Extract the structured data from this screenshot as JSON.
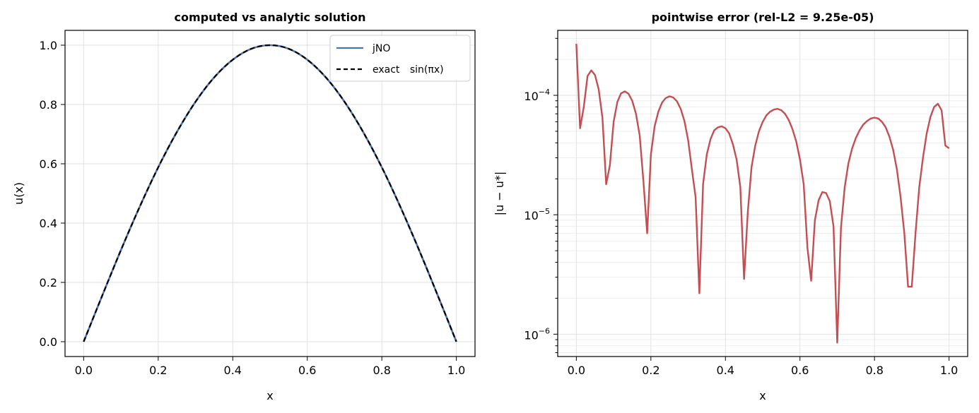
{
  "chart_data": [
    {
      "type": "line",
      "title": "computed vs analytic solution",
      "xlabel": "x",
      "ylabel": "u(x)",
      "xlim": [
        -0.05,
        1.05
      ],
      "ylim": [
        -0.05,
        1.05
      ],
      "xticks": [
        0.0,
        0.2,
        0.4,
        0.6,
        0.8,
        1.0
      ],
      "xtick_labels": [
        "0.0",
        "0.2",
        "0.4",
        "0.6",
        "0.8",
        "1.0"
      ],
      "yticks": [
        0.0,
        0.2,
        0.4,
        0.6,
        0.8,
        1.0
      ],
      "ytick_labels": [
        "0.0",
        "0.2",
        "0.4",
        "0.6",
        "0.8",
        "1.0"
      ],
      "grid": true,
      "legend_position": "top-right",
      "x": [
        0.0,
        0.05,
        0.1,
        0.15,
        0.2,
        0.25,
        0.3,
        0.35,
        0.4,
        0.45,
        0.5,
        0.55,
        0.6,
        0.65,
        0.7,
        0.75,
        0.8,
        0.85,
        0.9,
        0.95,
        1.0
      ],
      "series": [
        {
          "name": "jNO",
          "color": "#4c72b0",
          "style": "solid",
          "values": [
            0.0,
            0.156,
            0.309,
            0.454,
            0.588,
            0.707,
            0.809,
            0.891,
            0.951,
            0.988,
            1.0,
            0.988,
            0.951,
            0.891,
            0.809,
            0.707,
            0.588,
            0.454,
            0.309,
            0.156,
            0.0
          ]
        },
        {
          "name": "exact",
          "name_math": "sin(πx)",
          "color": "#000000",
          "style": "dashed",
          "values": [
            0.0,
            0.156,
            0.309,
            0.454,
            0.588,
            0.707,
            0.809,
            0.891,
            0.951,
            0.988,
            1.0,
            0.988,
            0.951,
            0.891,
            0.809,
            0.707,
            0.588,
            0.454,
            0.309,
            0.156,
            0.0
          ]
        }
      ]
    },
    {
      "type": "line",
      "title": "pointwise error (rel-L2 = 9.25e-05)",
      "xlabel": "x",
      "ylabel": "|u − u*|",
      "xlim": [
        -0.05,
        1.05
      ],
      "ylim": [
        6.5e-07,
        0.00035
      ],
      "yscale": "log",
      "xticks": [
        0.0,
        0.2,
        0.4,
        0.6,
        0.8,
        1.0
      ],
      "xtick_labels": [
        "0.0",
        "0.2",
        "0.4",
        "0.6",
        "0.8",
        "1.0"
      ],
      "yticks": [
        1e-06,
        1e-05,
        0.0001
      ],
      "ytick_labels": [
        {
          "base": "10",
          "exp": "−6"
        },
        {
          "base": "10",
          "exp": "−5"
        },
        {
          "base": "10",
          "exp": "−4"
        }
      ],
      "grid": true,
      "series": [
        {
          "color": "#c44e52",
          "x": [
            0.0,
            0.01,
            0.02,
            0.03,
            0.04,
            0.05,
            0.06,
            0.07,
            0.08,
            0.09,
            0.1,
            0.11,
            0.12,
            0.13,
            0.14,
            0.15,
            0.16,
            0.17,
            0.18,
            0.19,
            0.2,
            0.21,
            0.22,
            0.23,
            0.24,
            0.25,
            0.26,
            0.27,
            0.28,
            0.29,
            0.3,
            0.31,
            0.32,
            0.33,
            0.34,
            0.35,
            0.36,
            0.37,
            0.38,
            0.39,
            0.4,
            0.41,
            0.42,
            0.43,
            0.44,
            0.45,
            0.46,
            0.47,
            0.48,
            0.49,
            0.5,
            0.51,
            0.52,
            0.53,
            0.54,
            0.55,
            0.56,
            0.57,
            0.58,
            0.59,
            0.6,
            0.61,
            0.62,
            0.63,
            0.64,
            0.65,
            0.66,
            0.67,
            0.68,
            0.69,
            0.7,
            0.71,
            0.72,
            0.73,
            0.74,
            0.75,
            0.76,
            0.77,
            0.78,
            0.79,
            0.8,
            0.81,
            0.82,
            0.83,
            0.84,
            0.85,
            0.86,
            0.87,
            0.88,
            0.89,
            0.9,
            0.91,
            0.92,
            0.93,
            0.94,
            0.95,
            0.96,
            0.97,
            0.98,
            0.99,
            1.0
          ],
          "values": [
            0.00027,
            5.3e-05,
            8e-05,
            0.000145,
            0.000162,
            0.000148,
            0.000112,
            6.5e-05,
            1.8e-05,
            2.6e-05,
            6e-05,
            8.8e-05,
            0.000104,
            0.000108,
            0.000103,
            9e-05,
            7e-05,
            4.6e-05,
            1.9e-05,
            7e-06,
            3.2e-05,
            5.5e-05,
            7.3e-05,
            8.7e-05,
            9.5e-05,
            9.8e-05,
            9.6e-05,
            8.9e-05,
            7.7e-05,
            6.1e-05,
            4.2e-05,
            2.4e-05,
            1.4e-05,
            2.2e-06,
            1.8e-05,
            3.2e-05,
            4.3e-05,
            5.1e-05,
            5.4e-05,
            5.5e-05,
            5.3e-05,
            4.8e-05,
            3.9e-05,
            2.9e-05,
            1.7e-05,
            2.9e-06,
            1.05e-05,
            2.5e-05,
            3.8e-05,
            5e-05,
            6e-05,
            6.8e-05,
            7.3e-05,
            7.6e-05,
            7.7e-05,
            7.5e-05,
            7e-05,
            6.2e-05,
            5.2e-05,
            4.1e-05,
            2.9e-05,
            1.8e-05,
            5.3e-06,
            2.8e-06,
            9e-06,
            1.32e-05,
            1.55e-05,
            1.52e-05,
            1.3e-05,
            8e-06,
            8.5e-07,
            7.8e-06,
            1.7e-05,
            2.7e-05,
            3.6e-05,
            4.4e-05,
            5.1e-05,
            5.7e-05,
            6.1e-05,
            6.4e-05,
            6.5e-05,
            6.4e-05,
            6e-05,
            5.4e-05,
            4.5e-05,
            3.5e-05,
            2.4e-05,
            1.4e-05,
            7e-06,
            2.5e-06,
            2.5e-06,
            7e-06,
            1.7e-05,
            3e-05,
            4.8e-05,
            6.6e-05,
            8e-05,
            8.5e-05,
            7.5e-05,
            3.8e-05,
            3.6e-05
          ]
        }
      ]
    }
  ]
}
